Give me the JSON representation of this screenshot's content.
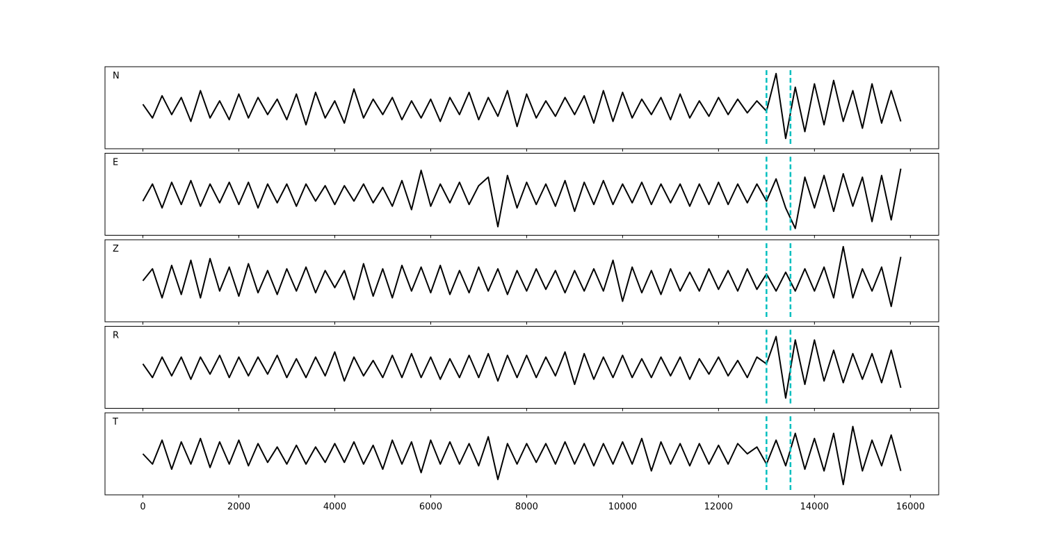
{
  "chart_data": [
    {
      "type": "line",
      "label": "N",
      "xlim": [
        -790,
        16590
      ],
      "ylim": [
        -1.2,
        1.2
      ],
      "xticks": [
        0,
        2000,
        4000,
        6000,
        8000,
        10000,
        12000,
        14000,
        16000
      ],
      "show_xtick_labels": false,
      "vlines": [
        13000,
        13500
      ],
      "vline_color": "#00bfbf",
      "x": [
        0,
        200,
        400,
        600,
        800,
        1000,
        1200,
        1400,
        1600,
        1800,
        2000,
        2200,
        2400,
        2600,
        2800,
        3000,
        3200,
        3400,
        3600,
        3800,
        4000,
        4200,
        4400,
        4600,
        4800,
        5000,
        5200,
        5400,
        5600,
        5800,
        6000,
        6200,
        6400,
        6600,
        6800,
        7000,
        7200,
        7400,
        7600,
        7800,
        8000,
        8200,
        8400,
        8600,
        8800,
        9000,
        9200,
        9400,
        9600,
        9800,
        10000,
        10200,
        10400,
        10600,
        10800,
        11000,
        11200,
        11400,
        11600,
        11800,
        12000,
        12200,
        12400,
        12600,
        12800,
        13000,
        13200,
        13400,
        13600,
        13800,
        14000,
        14200,
        14400,
        14600,
        14800,
        15000,
        15200,
        15400,
        15600,
        15800
      ],
      "series": [
        {
          "color": "#000000",
          "values": [
            0.1,
            -0.3,
            0.35,
            -0.2,
            0.3,
            -0.4,
            0.5,
            -0.3,
            0.2,
            -0.35,
            0.4,
            -0.3,
            0.3,
            -0.2,
            0.25,
            -0.35,
            0.4,
            -0.5,
            0.45,
            -0.3,
            0.2,
            -0.45,
            0.55,
            -0.3,
            0.25,
            -0.2,
            0.3,
            -0.35,
            0.2,
            -0.3,
            0.25,
            -0.4,
            0.3,
            -0.2,
            0.45,
            -0.35,
            0.3,
            -0.25,
            0.5,
            -0.55,
            0.4,
            -0.3,
            0.2,
            -0.25,
            0.3,
            -0.2,
            0.35,
            -0.45,
            0.5,
            -0.4,
            0.45,
            -0.3,
            0.25,
            -0.2,
            0.3,
            -0.35,
            0.4,
            -0.3,
            0.2,
            -0.25,
            0.3,
            -0.2,
            0.25,
            -0.15,
            0.2,
            -0.1,
            1.0,
            -0.9,
            0.6,
            -0.7,
            0.7,
            -0.5,
            0.8,
            -0.4,
            0.5,
            -0.6,
            0.7,
            -0.45,
            0.5,
            -0.4
          ]
        }
      ]
    },
    {
      "type": "line",
      "label": "E",
      "xlim": [
        -790,
        16590
      ],
      "ylim": [
        -1.2,
        1.2
      ],
      "xticks": [
        0,
        2000,
        4000,
        6000,
        8000,
        10000,
        12000,
        14000,
        16000
      ],
      "show_xtick_labels": false,
      "vlines": [
        13000,
        13500
      ],
      "vline_color": "#00bfbf",
      "x": [
        0,
        200,
        400,
        600,
        800,
        1000,
        1200,
        1400,
        1600,
        1800,
        2000,
        2200,
        2400,
        2600,
        2800,
        3000,
        3200,
        3400,
        3600,
        3800,
        4000,
        4200,
        4400,
        4600,
        4800,
        5000,
        5200,
        5400,
        5600,
        5800,
        6000,
        6200,
        6400,
        6600,
        6800,
        7000,
        7200,
        7400,
        7600,
        7800,
        8000,
        8200,
        8400,
        8600,
        8800,
        9000,
        9200,
        9400,
        9600,
        9800,
        10000,
        10200,
        10400,
        10600,
        10800,
        11000,
        11200,
        11400,
        11600,
        11800,
        12000,
        12200,
        12400,
        12600,
        12800,
        13000,
        13200,
        13400,
        13600,
        13800,
        14000,
        14200,
        14400,
        14600,
        14800,
        15000,
        15200,
        15400,
        15600,
        15800
      ],
      "series": [
        {
          "color": "#000000",
          "values": [
            -0.2,
            0.3,
            -0.4,
            0.35,
            -0.3,
            0.4,
            -0.35,
            0.3,
            -0.25,
            0.35,
            -0.3,
            0.35,
            -0.4,
            0.3,
            -0.25,
            0.3,
            -0.35,
            0.3,
            -0.2,
            0.25,
            -0.3,
            0.25,
            -0.2,
            0.3,
            -0.25,
            0.2,
            -0.35,
            0.4,
            -0.45,
            0.7,
            -0.35,
            0.3,
            -0.25,
            0.35,
            -0.3,
            0.25,
            0.5,
            -0.95,
            0.55,
            -0.4,
            0.35,
            -0.3,
            0.3,
            -0.35,
            0.4,
            -0.5,
            0.35,
            -0.3,
            0.4,
            -0.3,
            0.3,
            -0.25,
            0.35,
            -0.3,
            0.3,
            -0.25,
            0.3,
            -0.35,
            0.3,
            -0.3,
            0.35,
            -0.3,
            0.3,
            -0.25,
            0.3,
            -0.2,
            0.45,
            -0.4,
            -1.0,
            0.5,
            -0.4,
            0.55,
            -0.5,
            0.6,
            -0.35,
            0.5,
            -0.8,
            0.55,
            -0.75,
            0.75
          ]
        }
      ]
    },
    {
      "type": "line",
      "label": "Z",
      "xlim": [
        -790,
        16590
      ],
      "ylim": [
        -1.2,
        1.2
      ],
      "xticks": [
        0,
        2000,
        4000,
        6000,
        8000,
        10000,
        12000,
        14000,
        16000
      ],
      "show_xtick_labels": false,
      "vlines": [
        13000,
        13500
      ],
      "vline_color": "#00bfbf",
      "x": [
        0,
        200,
        400,
        600,
        800,
        1000,
        1200,
        1400,
        1600,
        1800,
        2000,
        2200,
        2400,
        2600,
        2800,
        3000,
        3200,
        3400,
        3600,
        3800,
        4000,
        4200,
        4400,
        4600,
        4800,
        5000,
        5200,
        5400,
        5600,
        5800,
        6000,
        6200,
        6400,
        6600,
        6800,
        7000,
        7200,
        7400,
        7600,
        7800,
        8000,
        8200,
        8400,
        8600,
        8800,
        9000,
        9200,
        9400,
        9600,
        9800,
        10000,
        10200,
        10400,
        10600,
        10800,
        11000,
        11200,
        11400,
        11600,
        11800,
        12000,
        12200,
        12400,
        12600,
        12800,
        13000,
        13200,
        13400,
        13600,
        13800,
        14000,
        14200,
        14400,
        14600,
        14800,
        15000,
        15200,
        15400,
        15600,
        15800
      ],
      "series": [
        {
          "color": "#000000",
          "values": [
            0.0,
            0.35,
            -0.5,
            0.45,
            -0.4,
            0.6,
            -0.5,
            0.65,
            -0.3,
            0.4,
            -0.45,
            0.5,
            -0.35,
            0.3,
            -0.4,
            0.35,
            -0.3,
            0.4,
            -0.35,
            0.3,
            -0.2,
            0.3,
            -0.55,
            0.5,
            -0.45,
            0.35,
            -0.5,
            0.45,
            -0.3,
            0.4,
            -0.35,
            0.45,
            -0.4,
            0.3,
            -0.35,
            0.4,
            -0.3,
            0.35,
            -0.4,
            0.3,
            -0.3,
            0.35,
            -0.25,
            0.3,
            -0.35,
            0.3,
            -0.3,
            0.35,
            -0.3,
            0.6,
            -0.6,
            0.4,
            -0.35,
            0.3,
            -0.4,
            0.35,
            -0.3,
            0.25,
            -0.3,
            0.35,
            -0.25,
            0.3,
            -0.3,
            0.35,
            -0.25,
            0.2,
            -0.3,
            0.25,
            -0.3,
            0.35,
            -0.3,
            0.4,
            -0.5,
            1.0,
            -0.5,
            0.35,
            -0.3,
            0.4,
            -0.75,
            0.7
          ]
        }
      ]
    },
    {
      "type": "line",
      "label": "R",
      "xlim": [
        -790,
        16590
      ],
      "ylim": [
        -1.2,
        1.2
      ],
      "xticks": [
        0,
        2000,
        4000,
        6000,
        8000,
        10000,
        12000,
        14000,
        16000
      ],
      "show_xtick_labels": false,
      "vlines": [
        13000,
        13500
      ],
      "vline_color": "#00bfbf",
      "x": [
        0,
        200,
        400,
        600,
        800,
        1000,
        1200,
        1400,
        1600,
        1800,
        2000,
        2200,
        2400,
        2600,
        2800,
        3000,
        3200,
        3400,
        3600,
        3800,
        4000,
        4200,
        4400,
        4600,
        4800,
        5000,
        5200,
        5400,
        5600,
        5800,
        6000,
        6200,
        6400,
        6600,
        6800,
        7000,
        7200,
        7400,
        7600,
        7800,
        8000,
        8200,
        8400,
        8600,
        8800,
        9000,
        9200,
        9400,
        9600,
        9800,
        10000,
        10200,
        10400,
        10600,
        10800,
        11000,
        11200,
        11400,
        11600,
        11800,
        12000,
        12200,
        12400,
        12600,
        12800,
        13000,
        13200,
        13400,
        13600,
        13800,
        14000,
        14200,
        14400,
        14600,
        14800,
        15000,
        15200,
        15400,
        15600,
        15800
      ],
      "series": [
        {
          "color": "#000000",
          "values": [
            0.1,
            -0.3,
            0.3,
            -0.25,
            0.3,
            -0.35,
            0.3,
            -0.2,
            0.35,
            -0.3,
            0.3,
            -0.25,
            0.3,
            -0.2,
            0.35,
            -0.3,
            0.25,
            -0.3,
            0.3,
            -0.25,
            0.45,
            -0.4,
            0.3,
            -0.25,
            0.2,
            -0.3,
            0.35,
            -0.3,
            0.4,
            -0.3,
            0.3,
            -0.35,
            0.25,
            -0.3,
            0.35,
            -0.3,
            0.4,
            -0.4,
            0.35,
            -0.3,
            0.35,
            -0.3,
            0.3,
            -0.25,
            0.45,
            -0.5,
            0.4,
            -0.35,
            0.3,
            -0.3,
            0.35,
            -0.3,
            0.25,
            -0.3,
            0.3,
            -0.25,
            0.3,
            -0.35,
            0.25,
            -0.2,
            0.3,
            -0.25,
            0.2,
            -0.3,
            0.3,
            0.1,
            0.9,
            -0.9,
            0.8,
            -0.5,
            0.8,
            -0.4,
            0.5,
            -0.45,
            0.4,
            -0.35,
            0.4,
            -0.45,
            0.5,
            -0.6
          ]
        }
      ]
    },
    {
      "type": "line",
      "label": "T",
      "xlim": [
        -790,
        16590
      ],
      "ylim": [
        -1.2,
        1.2
      ],
      "xticks": [
        0,
        2000,
        4000,
        6000,
        8000,
        10000,
        12000,
        14000,
        16000
      ],
      "show_xtick_labels": true,
      "vlines": [
        13000,
        13500
      ],
      "vline_color": "#00bfbf",
      "x": [
        0,
        200,
        400,
        600,
        800,
        1000,
        1200,
        1400,
        1600,
        1800,
        2000,
        2200,
        2400,
        2600,
        2800,
        3000,
        3200,
        3400,
        3600,
        3800,
        4000,
        4200,
        4400,
        4600,
        4800,
        5000,
        5200,
        5400,
        5600,
        5800,
        6000,
        6200,
        6400,
        6600,
        6800,
        7000,
        7200,
        7400,
        7600,
        7800,
        8000,
        8200,
        8400,
        8600,
        8800,
        9000,
        9200,
        9400,
        9600,
        9800,
        10000,
        10200,
        10400,
        10600,
        10800,
        11000,
        11200,
        11400,
        11600,
        11800,
        12000,
        12200,
        12400,
        12600,
        12800,
        13000,
        13200,
        13400,
        13600,
        13800,
        14000,
        14200,
        14400,
        14600,
        14800,
        15000,
        15200,
        15400,
        15600,
        15800
      ],
      "series": [
        {
          "color": "#000000",
          "values": [
            0.0,
            -0.3,
            0.4,
            -0.45,
            0.35,
            -0.3,
            0.45,
            -0.4,
            0.35,
            -0.3,
            0.4,
            -0.35,
            0.3,
            -0.25,
            0.2,
            -0.3,
            0.25,
            -0.3,
            0.2,
            -0.25,
            0.3,
            -0.25,
            0.35,
            -0.3,
            0.25,
            -0.45,
            0.4,
            -0.3,
            0.35,
            -0.55,
            0.4,
            -0.3,
            0.35,
            -0.3,
            0.3,
            -0.35,
            0.5,
            -0.75,
            0.3,
            -0.3,
            0.3,
            -0.25,
            0.3,
            -0.3,
            0.35,
            -0.3,
            0.3,
            -0.35,
            0.3,
            -0.3,
            0.35,
            -0.3,
            0.45,
            -0.5,
            0.35,
            -0.3,
            0.3,
            -0.35,
            0.3,
            -0.3,
            0.25,
            -0.3,
            0.3,
            0.0,
            0.2,
            -0.3,
            0.4,
            -0.35,
            0.6,
            -0.45,
            0.45,
            -0.5,
            0.6,
            -0.9,
            0.8,
            -0.5,
            0.4,
            -0.35,
            0.55,
            -0.5
          ]
        }
      ]
    }
  ]
}
